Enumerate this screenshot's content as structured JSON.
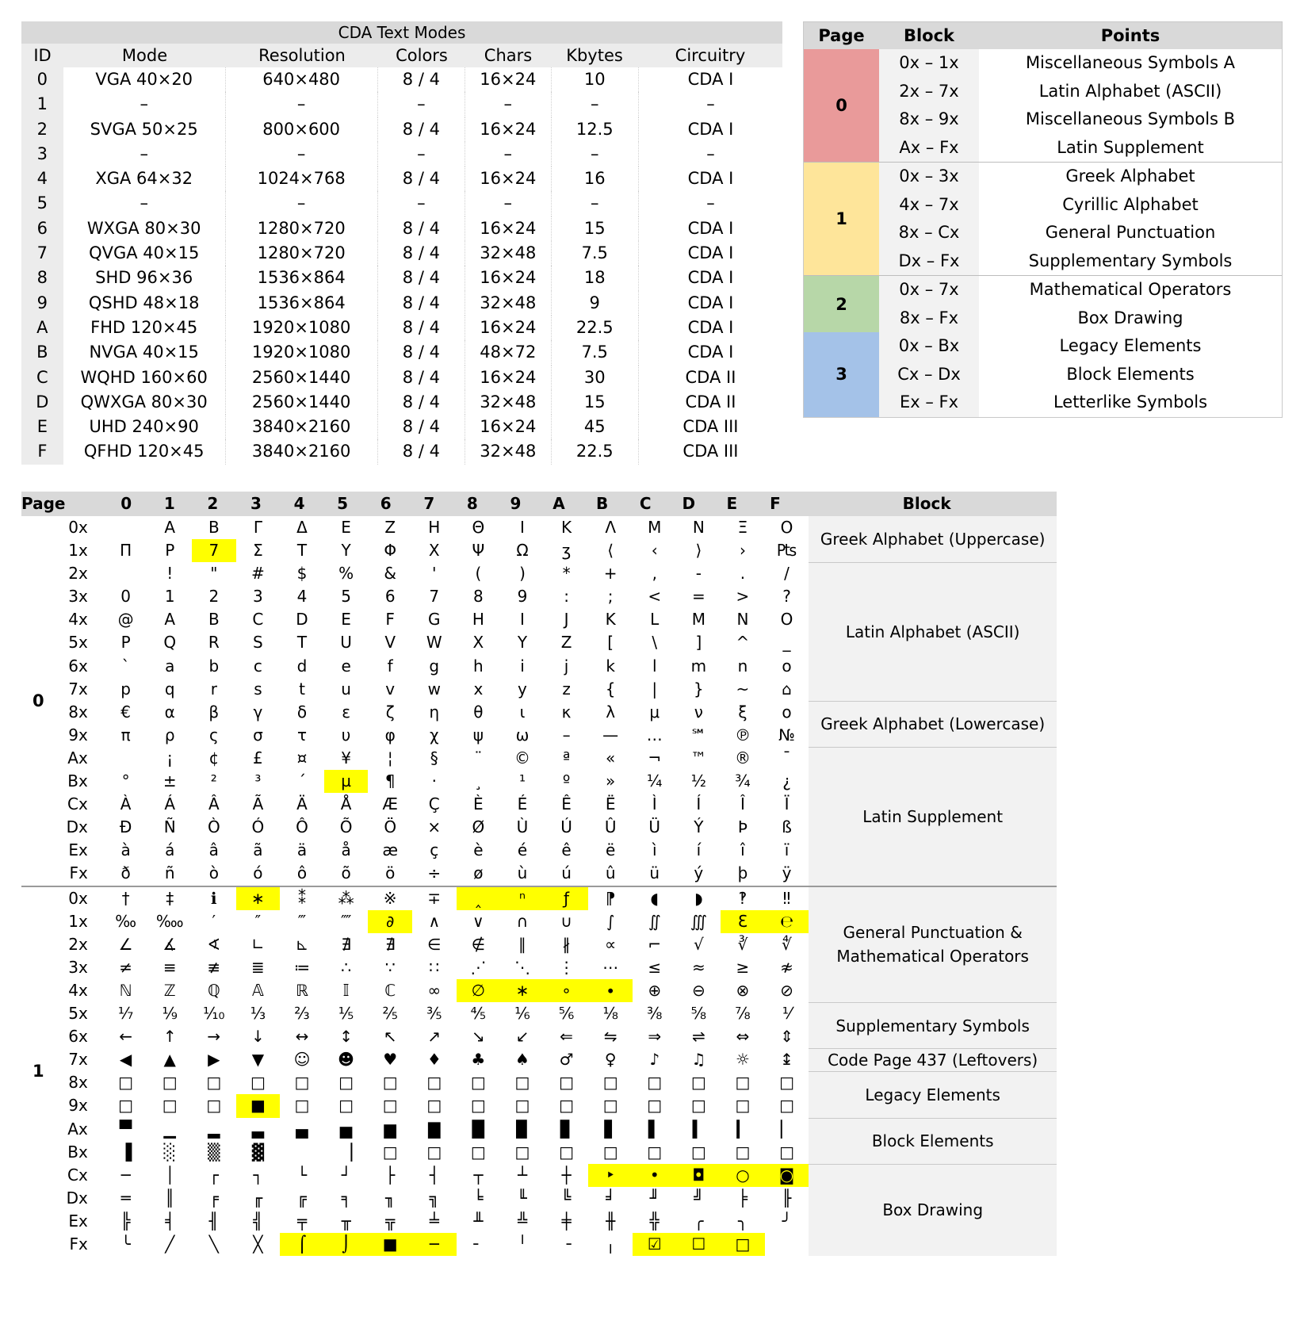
{
  "modes": {
    "title": "CDA Text Modes",
    "headers": [
      "ID",
      "Mode",
      "Resolution",
      "Colors",
      "Chars",
      "Kbytes",
      "Circuitry"
    ],
    "rows": [
      [
        "0",
        "VGA 40×20",
        "640×480",
        "8 / 4",
        "16×24",
        "10",
        "CDA I"
      ],
      [
        "1",
        "–",
        "–",
        "–",
        "–",
        "–",
        "–"
      ],
      [
        "2",
        "SVGA 50×25",
        "800×600",
        "8 / 4",
        "16×24",
        "12.5",
        "CDA I"
      ],
      [
        "3",
        "–",
        "–",
        "–",
        "–",
        "–",
        "–"
      ],
      [
        "4",
        "XGA 64×32",
        "1024×768",
        "8 / 4",
        "16×24",
        "16",
        "CDA I"
      ],
      [
        "5",
        "–",
        "–",
        "–",
        "–",
        "–",
        "–"
      ],
      [
        "6",
        "WXGA 80×30",
        "1280×720",
        "8 / 4",
        "16×24",
        "15",
        "CDA I"
      ],
      [
        "7",
        "QVGA 40×15",
        "1280×720",
        "8 / 4",
        "32×48",
        "7.5",
        "CDA I"
      ],
      [
        "8",
        "SHD 96×36",
        "1536×864",
        "8 / 4",
        "16×24",
        "18",
        "CDA I"
      ],
      [
        "9",
        "QSHD 48×18",
        "1536×864",
        "8 / 4",
        "32×48",
        "9",
        "CDA I"
      ],
      [
        "A",
        "FHD 120×45",
        "1920×1080",
        "8 / 4",
        "16×24",
        "22.5",
        "CDA I"
      ],
      [
        "B",
        "NVGA 40×15",
        "1920×1080",
        "8 / 4",
        "48×72",
        "7.5",
        "CDA I"
      ],
      [
        "C",
        "WQHD 160×60",
        "2560×1440",
        "8 / 4",
        "16×24",
        "30",
        "CDA II"
      ],
      [
        "D",
        "QWXGA 80×30",
        "2560×1440",
        "8 / 4",
        "32×48",
        "15",
        "CDA II"
      ],
      [
        "E",
        "UHD 240×90",
        "3840×2160",
        "8 / 4",
        "16×24",
        "45",
        "CDA III"
      ],
      [
        "F",
        "QFHD 120×45",
        "3840×2160",
        "8 / 4",
        "32×48",
        "22.5",
        "CDA III"
      ]
    ]
  },
  "blocks": {
    "headers": [
      "Page",
      "Block",
      "Points"
    ],
    "groups": [
      {
        "page": "0",
        "color": "#e99a9a",
        "rows": [
          [
            "0x – 1x",
            "Miscellaneous Symbols A"
          ],
          [
            "2x – 7x",
            "Latin Alphabet (ASCII)"
          ],
          [
            "8x – 9x",
            "Miscellaneous Symbols B"
          ],
          [
            "Ax – Fx",
            "Latin Supplement"
          ]
        ]
      },
      {
        "page": "1",
        "color": "#fee59a",
        "rows": [
          [
            "0x – 3x",
            "Greek Alphabet"
          ],
          [
            "4x – 7x",
            "Cyrillic Alphabet"
          ],
          [
            "8x – Cx",
            "General Punctuation"
          ],
          [
            "Dx – Fx",
            "Supplementary Symbols"
          ]
        ]
      },
      {
        "page": "2",
        "color": "#b7d7a8",
        "rows": [
          [
            "0x – 7x",
            "Mathematical Operators"
          ],
          [
            "8x – Fx",
            "Box Drawing"
          ]
        ]
      },
      {
        "page": "3",
        "color": "#a4c2e8",
        "rows": [
          [
            "0x – Bx",
            "Legacy Elements"
          ],
          [
            "Cx – Dx",
            "Block Elements"
          ],
          [
            "Ex – Fx",
            "Letterlike Symbols"
          ]
        ]
      }
    ]
  },
  "codepage": {
    "headers": [
      "Page",
      "0",
      "1",
      "2",
      "3",
      "4",
      "5",
      "6",
      "7",
      "8",
      "9",
      "A",
      "B",
      "C",
      "D",
      "E",
      "F",
      "Block"
    ],
    "pages": [
      {
        "page": "0",
        "rows": [
          {
            "label": "0x",
            "cells": [
              "",
              "Α",
              "Β",
              "Γ",
              "Δ",
              "Ε",
              "Ζ",
              "Η",
              "Θ",
              "Ι",
              "Κ",
              "Λ",
              "Μ",
              "Ν",
              "Ξ",
              "Ο"
            ]
          },
          {
            "label": "1x",
            "cells": [
              "Π",
              "Ρ",
              "7",
              "Σ",
              "Τ",
              "Υ",
              "Φ",
              "Χ",
              "Ψ",
              "Ω",
              "ʒ",
              "⟨",
              "‹",
              "⟩",
              "›",
              "₧"
            ],
            "hl": [
              2
            ]
          },
          {
            "label": "2x",
            "cells": [
              "",
              "!",
              "\"",
              "#",
              "$",
              "%",
              "&",
              "'",
              "(",
              ")",
              "*",
              "+",
              ",",
              "-",
              ".",
              "/"
            ]
          },
          {
            "label": "3x",
            "cells": [
              "0",
              "1",
              "2",
              "3",
              "4",
              "5",
              "6",
              "7",
              "8",
              "9",
              ":",
              ";",
              "<",
              "=",
              ">",
              "?"
            ]
          },
          {
            "label": "4x",
            "cells": [
              "@",
              "A",
              "B",
              "C",
              "D",
              "E",
              "F",
              "G",
              "H",
              "I",
              "J",
              "K",
              "L",
              "M",
              "N",
              "O"
            ]
          },
          {
            "label": "5x",
            "cells": [
              "P",
              "Q",
              "R",
              "S",
              "T",
              "U",
              "V",
              "W",
              "X",
              "Y",
              "Z",
              "[",
              "\\",
              "]",
              "^",
              "_"
            ]
          },
          {
            "label": "6x",
            "cells": [
              "`",
              "a",
              "b",
              "c",
              "d",
              "e",
              "f",
              "g",
              "h",
              "i",
              "j",
              "k",
              "l",
              "m",
              "n",
              "o"
            ]
          },
          {
            "label": "7x",
            "cells": [
              "p",
              "q",
              "r",
              "s",
              "t",
              "u",
              "v",
              "w",
              "x",
              "y",
              "z",
              "{",
              "|",
              "}",
              "~",
              "⌂"
            ]
          },
          {
            "label": "8x",
            "cells": [
              "€",
              "α",
              "β",
              "γ",
              "δ",
              "ε",
              "ζ",
              "η",
              "θ",
              "ι",
              "κ",
              "λ",
              "μ",
              "ν",
              "ξ",
              "ο"
            ]
          },
          {
            "label": "9x",
            "cells": [
              "π",
              "ρ",
              "ς",
              "σ",
              "τ",
              "υ",
              "φ",
              "χ",
              "ψ",
              "ω",
              "–",
              "—",
              "…",
              "℠",
              "℗",
              "№"
            ]
          },
          {
            "label": "Ax",
            "cells": [
              "",
              "¡",
              "¢",
              "£",
              "¤",
              "¥",
              "¦",
              "§",
              "¨",
              "©",
              "ª",
              "«",
              "¬",
              "™",
              "®",
              "¯"
            ]
          },
          {
            "label": "Bx",
            "cells": [
              "°",
              "±",
              "²",
              "³",
              "´",
              "µ",
              "¶",
              "·",
              "¸",
              "¹",
              "º",
              "»",
              "¼",
              "½",
              "¾",
              "¿"
            ],
            "hl": [
              5
            ]
          },
          {
            "label": "Cx",
            "cells": [
              "À",
              "Á",
              "Â",
              "Ã",
              "Ä",
              "Å",
              "Æ",
              "Ç",
              "È",
              "É",
              "Ê",
              "Ë",
              "Ì",
              "Í",
              "Î",
              "Ï"
            ]
          },
          {
            "label": "Dx",
            "cells": [
              "Ð",
              "Ñ",
              "Ò",
              "Ó",
              "Ô",
              "Õ",
              "Ö",
              "×",
              "Ø",
              "Ù",
              "Ú",
              "Û",
              "Ü",
              "Ý",
              "Þ",
              "ß"
            ]
          },
          {
            "label": "Ex",
            "cells": [
              "à",
              "á",
              "â",
              "ã",
              "ä",
              "å",
              "æ",
              "ç",
              "è",
              "é",
              "ê",
              "ë",
              "ì",
              "í",
              "î",
              "ï"
            ]
          },
          {
            "label": "Fx",
            "cells": [
              "ð",
              "ñ",
              "ò",
              "ó",
              "ô",
              "õ",
              "ö",
              "÷",
              "ø",
              "ù",
              "ú",
              "û",
              "ü",
              "ý",
              "þ",
              "ÿ"
            ]
          }
        ],
        "blocks": [
          {
            "label": "Greek Alphabet (Uppercase)",
            "rows": 2
          },
          {
            "label": "Latin Alphabet (ASCII)",
            "rows": 6
          },
          {
            "label": "Greek Alphabet (Lowercase)",
            "rows": 2
          },
          {
            "label": "Latin Supplement",
            "rows": 6
          }
        ]
      },
      {
        "page": "1",
        "rows": [
          {
            "label": "0x",
            "cells": [
              "†",
              "‡",
              "ℹ",
              "∗",
              "⁑",
              "⁂",
              "※",
              "∓",
              "‸",
              "ⁿ",
              "ƒ",
              "⁋",
              "◖",
              "◗",
              "‽",
              "‼"
            ],
            "hl": [
              3,
              8,
              9,
              10
            ]
          },
          {
            "label": "1x",
            "cells": [
              "‰",
              "‱",
              "′",
              "″",
              "‴",
              "⁗",
              "∂",
              "∧",
              "∨",
              "∩",
              "∪",
              "∫",
              "∬",
              "∭",
              "Ɛ",
              "℮"
            ],
            "hl": [
              6,
              14,
              15
            ]
          },
          {
            "label": "2x",
            "cells": [
              "∠",
              "∡",
              "∢",
              "∟",
              "⊾",
              "∄",
              "∄",
              "∈",
              "∉",
              "∥",
              "∦",
              "∝",
              "⌐",
              "√",
              "∛",
              "∜"
            ]
          },
          {
            "label": "3x",
            "cells": [
              "≠",
              "≡",
              "≢",
              "≣",
              "≔",
              "∴",
              "∵",
              "∷",
              "⋰",
              "⋱",
              "⋮",
              "⋯",
              "≤",
              "≈",
              "≥",
              "≉"
            ]
          },
          {
            "label": "4x",
            "cells": [
              "ℕ",
              "ℤ",
              "ℚ",
              "𝔸",
              "ℝ",
              "𝕀",
              "ℂ",
              "∞",
              "∅",
              "∗",
              "∘",
              "∙",
              "⊕",
              "⊖",
              "⊗",
              "⊘"
            ],
            "hl": [
              8,
              9,
              10,
              11
            ]
          },
          {
            "label": "5x",
            "cells": [
              "⅐",
              "⅑",
              "⅒",
              "⅓",
              "⅔",
              "⅕",
              "⅖",
              "⅗",
              "⅘",
              "⅙",
              "⅚",
              "⅛",
              "⅜",
              "⅝",
              "⅞",
              "⅟"
            ]
          },
          {
            "label": "6x",
            "cells": [
              "←",
              "↑",
              "→",
              "↓",
              "↔",
              "↕",
              "↖",
              "↗",
              "↘",
              "↙",
              "⇐",
              "⇋",
              "⇒",
              "⇌",
              "⇔",
              "⇕"
            ]
          },
          {
            "label": "7x",
            "cells": [
              "◀",
              "▲",
              "▶",
              "▼",
              "☺",
              "☻",
              "♥",
              "♦",
              "♣",
              "♠",
              "♂",
              "♀",
              "♪",
              "♫",
              "☼",
              "↨"
            ]
          },
          {
            "label": "8x",
            "cells": [
              "□",
              "□",
              "□",
              "□",
              "□",
              "□",
              "□",
              "□",
              "□",
              "□",
              "□",
              "□",
              "□",
              "□",
              "□",
              "□"
            ]
          },
          {
            "label": "9x",
            "cells": [
              "□",
              "□",
              "□",
              "■",
              "□",
              "□",
              "□",
              "□",
              "□",
              "□",
              "□",
              "□",
              "□",
              "□",
              "□",
              "□"
            ],
            "hl": [
              3
            ]
          },
          {
            "label": "Ax",
            "cells": [
              "▀",
              "▁",
              "▂",
              "▃",
              "▄",
              "▅",
              "▆",
              "▇",
              "█",
              "▉",
              "▊",
              "▋",
              "▌",
              "▍",
              "▎",
              "▏"
            ]
          },
          {
            "label": "Bx",
            "cells": [
              "▐",
              "░",
              "▒",
              "▓",
              "",
              "▕",
              "□",
              "□",
              "□",
              "□",
              "□",
              "□",
              "□",
              "□",
              "□",
              "□"
            ]
          },
          {
            "label": "Cx",
            "cells": [
              "─",
              "│",
              "┌",
              "┐",
              "└",
              "┘",
              "├",
              "┤",
              "┬",
              "┴",
              "┼",
              "‣",
              "•",
              "◘",
              "○",
              "◙"
            ],
            "hl": [
              11,
              12,
              13,
              14,
              15
            ]
          },
          {
            "label": "Dx",
            "cells": [
              "═",
              "║",
              "╒",
              "╓",
              "╔",
              "╕",
              "╖",
              "╗",
              "╘",
              "╙",
              "╚",
              "╛",
              "╜",
              "╝",
              "╞",
              "╟"
            ]
          },
          {
            "label": "Ex",
            "cells": [
              "╠",
              "╡",
              "╢",
              "╣",
              "╤",
              "╥",
              "╦",
              "╧",
              "╨",
              "╩",
              "╪",
              "╫",
              "╬",
              "╭",
              "╮",
              "╯"
            ]
          },
          {
            "label": "Fx",
            "cells": [
              "╰",
              "╱",
              "╲",
              "╳",
              "⌠",
              "⌡",
              "■",
              "─",
              "╴",
              "╵",
              "╶",
              "╷",
              "☑",
              "☐",
              "□",
              ""
            ],
            "hl": [
              4,
              5,
              6,
              7,
              12,
              13,
              14
            ]
          }
        ],
        "blocks": [
          {
            "label": "General Punctuation & Mathematical Operators",
            "rows": 5
          },
          {
            "label": "Supplementary Symbols",
            "rows": 2
          },
          {
            "label": "Code Page 437 (Leftovers)",
            "rows": 1
          },
          {
            "label": "Legacy Elements",
            "rows": 2
          },
          {
            "label": "Block Elements",
            "rows": 2
          },
          {
            "label": "Box Drawing",
            "rows": 4
          }
        ]
      }
    ]
  }
}
